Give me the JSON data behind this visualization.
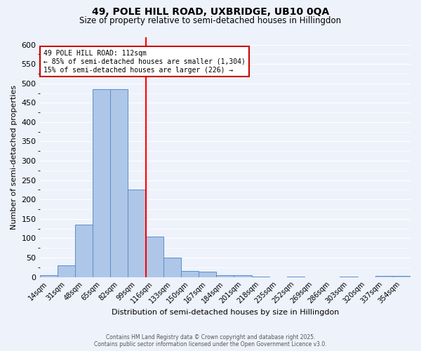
{
  "title_line1": "49, POLE HILL ROAD, UXBRIDGE, UB10 0QA",
  "title_line2": "Size of property relative to semi-detached houses in Hillingdon",
  "xlabel": "Distribution of semi-detached houses by size in Hillingdon",
  "ylabel": "Number of semi-detached properties",
  "bin_labels": [
    "14sqm",
    "31sqm",
    "48sqm",
    "65sqm",
    "82sqm",
    "99sqm",
    "116sqm",
    "133sqm",
    "150sqm",
    "167sqm",
    "184sqm",
    "201sqm",
    "218sqm",
    "235sqm",
    "252sqm",
    "269sqm",
    "286sqm",
    "303sqm",
    "320sqm",
    "337sqm",
    "354sqm"
  ],
  "bin_values": [
    5,
    30,
    135,
    485,
    485,
    225,
    105,
    50,
    15,
    13,
    5,
    5,
    1,
    0,
    1,
    0,
    0,
    1,
    0,
    2,
    3
  ],
  "bar_color": "#aec6e8",
  "bar_edge_color": "#5b8fc9",
  "property_label": "49 POLE HILL ROAD: 112sqm",
  "pct_smaller": 85,
  "n_smaller": 1304,
  "pct_larger": 15,
  "n_larger": 226,
  "vline_color": "red",
  "annotation_box_edge_color": "#cc0000",
  "background_color": "#eef2fb",
  "grid_color": "#ffffff",
  "ylim": [
    0,
    620
  ],
  "yticks": [
    0,
    50,
    100,
    150,
    200,
    250,
    300,
    350,
    400,
    450,
    500,
    550,
    600
  ],
  "footer_line1": "Contains HM Land Registry data © Crown copyright and database right 2025.",
  "footer_line2": "Contains public sector information licensed under the Open Government Licence v3.0."
}
